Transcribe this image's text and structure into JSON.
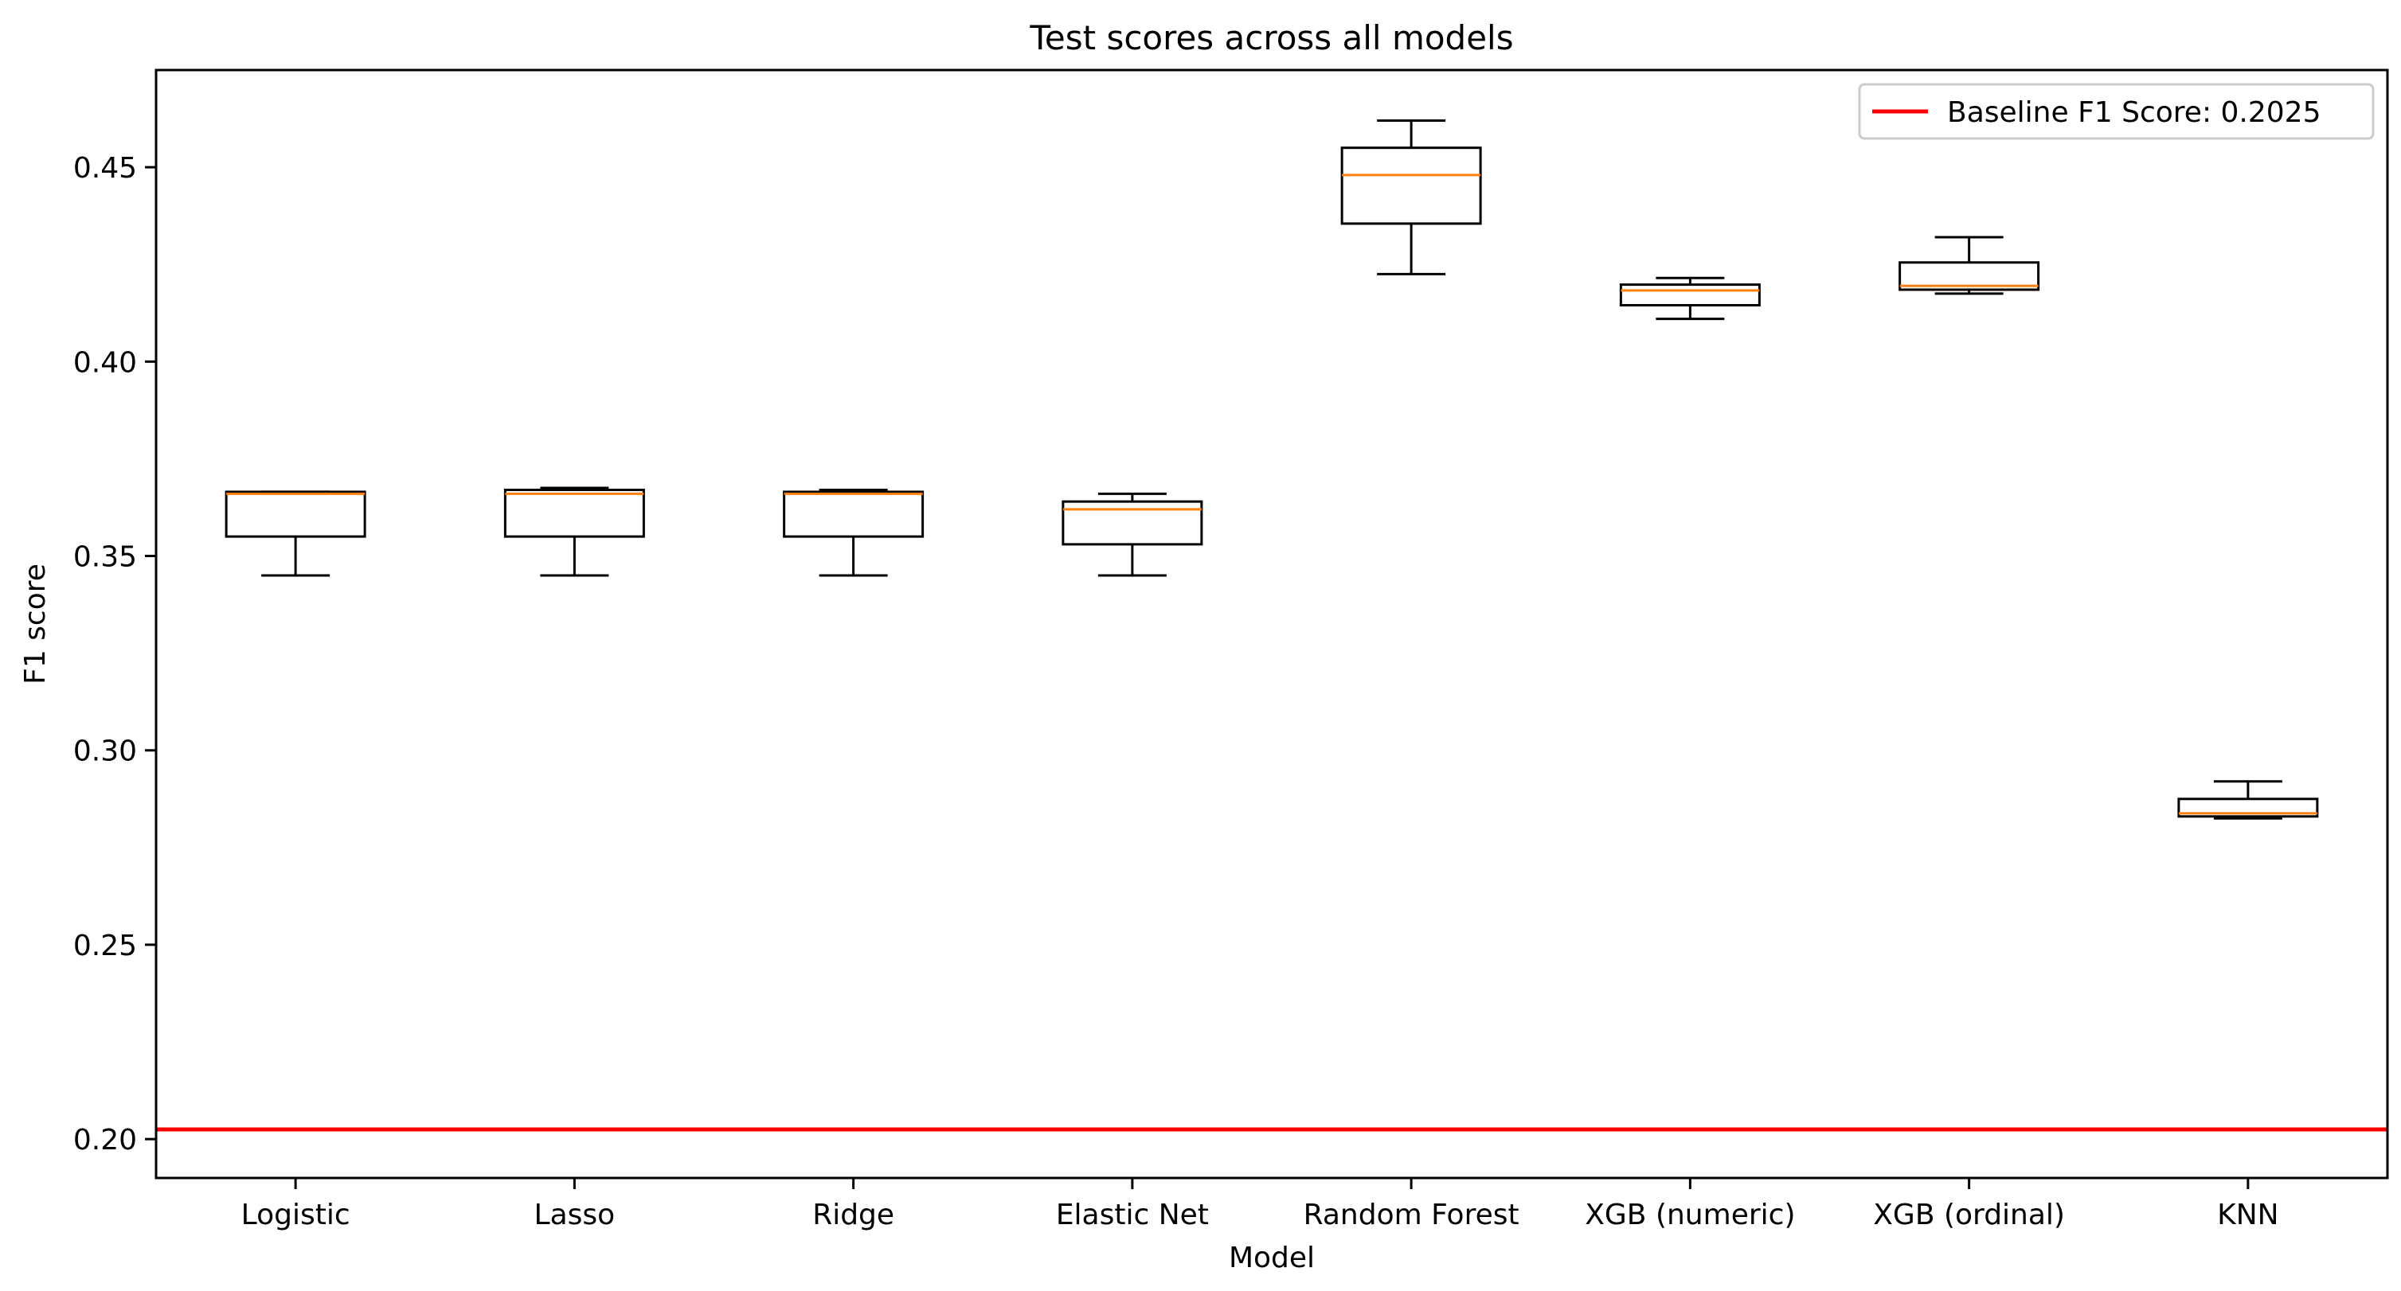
{
  "chart_data": {
    "type": "box",
    "title": "Test scores across all models",
    "xlabel": "Model",
    "ylabel": "F1 score",
    "ylim": [
      0.19,
      0.475
    ],
    "yticks": [
      0.2,
      0.25,
      0.3,
      0.35,
      0.4,
      0.45
    ],
    "ytick_labels": [
      "0.20",
      "0.25",
      "0.30",
      "0.35",
      "0.40",
      "0.45"
    ],
    "categories": [
      "Logistic",
      "Lasso",
      "Ridge",
      "Elastic Net",
      "Random Forest",
      "XGB (numeric)",
      "XGB (ordinal)",
      "KNN"
    ],
    "boxes": [
      {
        "whisker_low": 0.345,
        "q1": 0.355,
        "median": 0.366,
        "q3": 0.3665,
        "whisker_high": 0.3665
      },
      {
        "whisker_low": 0.345,
        "q1": 0.355,
        "median": 0.366,
        "q3": 0.367,
        "whisker_high": 0.3675
      },
      {
        "whisker_low": 0.345,
        "q1": 0.355,
        "median": 0.366,
        "q3": 0.3665,
        "whisker_high": 0.367
      },
      {
        "whisker_low": 0.345,
        "q1": 0.353,
        "median": 0.362,
        "q3": 0.364,
        "whisker_high": 0.366
      },
      {
        "whisker_low": 0.4225,
        "q1": 0.4355,
        "median": 0.448,
        "q3": 0.455,
        "whisker_high": 0.462
      },
      {
        "whisker_low": 0.411,
        "q1": 0.4145,
        "median": 0.4183,
        "q3": 0.4198,
        "whisker_high": 0.4215
      },
      {
        "whisker_low": 0.4175,
        "q1": 0.4185,
        "median": 0.4195,
        "q3": 0.4255,
        "whisker_high": 0.432
      },
      {
        "whisker_low": 0.2825,
        "q1": 0.283,
        "median": 0.2838,
        "q3": 0.2875,
        "whisker_high": 0.292
      }
    ],
    "baseline": {
      "value": 0.2025,
      "label": "Baseline F1 Score: 0.2025"
    },
    "legend_position": "top-right",
    "grid": false,
    "colors": {
      "box": "#000000",
      "median": "#ff7f0e",
      "baseline": "#ff0000"
    }
  }
}
